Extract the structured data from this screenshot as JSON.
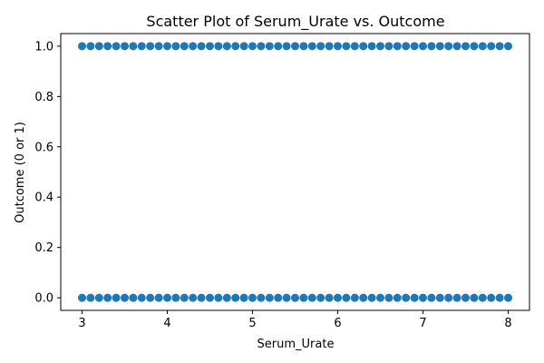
{
  "chart_data": {
    "type": "scatter",
    "title": "Scatter Plot of Serum_Urate vs. Outcome",
    "xlabel": "Serum_Urate",
    "ylabel": "Outcome (0 or 1)",
    "xlim": [
      2.75,
      8.25
    ],
    "ylim": [
      -0.05,
      1.05
    ],
    "xticks": [
      3,
      4,
      5,
      6,
      7,
      8
    ],
    "xtick_labels": [
      "3",
      "4",
      "5",
      "6",
      "7",
      "8"
    ],
    "yticks": [
      0.0,
      0.2,
      0.4,
      0.6,
      0.8,
      1.0
    ],
    "ytick_labels": [
      "0.0",
      "0.2",
      "0.4",
      "0.6",
      "0.8",
      "1.0"
    ],
    "grid": false,
    "marker_color": "#1f77b4",
    "series": [
      {
        "points": [
          {
            "x": 3.0,
            "y": 0
          },
          {
            "x": 3.1,
            "y": 0
          },
          {
            "x": 3.2,
            "y": 0
          },
          {
            "x": 3.3,
            "y": 0
          },
          {
            "x": 3.4,
            "y": 0
          },
          {
            "x": 3.5,
            "y": 0
          },
          {
            "x": 3.6,
            "y": 0
          },
          {
            "x": 3.7,
            "y": 0
          },
          {
            "x": 3.8,
            "y": 0
          },
          {
            "x": 3.9,
            "y": 0
          },
          {
            "x": 4.0,
            "y": 0
          },
          {
            "x": 4.1,
            "y": 0
          },
          {
            "x": 4.2,
            "y": 0
          },
          {
            "x": 4.3,
            "y": 0
          },
          {
            "x": 4.4,
            "y": 0
          },
          {
            "x": 4.5,
            "y": 0
          },
          {
            "x": 4.6,
            "y": 0
          },
          {
            "x": 4.7,
            "y": 0
          },
          {
            "x": 4.8,
            "y": 0
          },
          {
            "x": 4.9,
            "y": 0
          },
          {
            "x": 5.0,
            "y": 0
          },
          {
            "x": 5.1,
            "y": 0
          },
          {
            "x": 5.2,
            "y": 0
          },
          {
            "x": 5.3,
            "y": 0
          },
          {
            "x": 5.4,
            "y": 0
          },
          {
            "x": 5.5,
            "y": 0
          },
          {
            "x": 5.6,
            "y": 0
          },
          {
            "x": 5.7,
            "y": 0
          },
          {
            "x": 5.8,
            "y": 0
          },
          {
            "x": 5.9,
            "y": 0
          },
          {
            "x": 6.0,
            "y": 0
          },
          {
            "x": 6.1,
            "y": 0
          },
          {
            "x": 6.2,
            "y": 0
          },
          {
            "x": 6.3,
            "y": 0
          },
          {
            "x": 6.4,
            "y": 0
          },
          {
            "x": 6.5,
            "y": 0
          },
          {
            "x": 6.6,
            "y": 0
          },
          {
            "x": 6.7,
            "y": 0
          },
          {
            "x": 6.8,
            "y": 0
          },
          {
            "x": 6.9,
            "y": 0
          },
          {
            "x": 7.0,
            "y": 0
          },
          {
            "x": 7.1,
            "y": 0
          },
          {
            "x": 7.2,
            "y": 0
          },
          {
            "x": 7.3,
            "y": 0
          },
          {
            "x": 7.4,
            "y": 0
          },
          {
            "x": 7.5,
            "y": 0
          },
          {
            "x": 7.6,
            "y": 0
          },
          {
            "x": 7.7,
            "y": 0
          },
          {
            "x": 7.8,
            "y": 0
          },
          {
            "x": 7.9,
            "y": 0
          },
          {
            "x": 8.0,
            "y": 0
          },
          {
            "x": 3.0,
            "y": 1
          },
          {
            "x": 3.1,
            "y": 1
          },
          {
            "x": 3.2,
            "y": 1
          },
          {
            "x": 3.3,
            "y": 1
          },
          {
            "x": 3.4,
            "y": 1
          },
          {
            "x": 3.5,
            "y": 1
          },
          {
            "x": 3.6,
            "y": 1
          },
          {
            "x": 3.7,
            "y": 1
          },
          {
            "x": 3.8,
            "y": 1
          },
          {
            "x": 3.9,
            "y": 1
          },
          {
            "x": 4.0,
            "y": 1
          },
          {
            "x": 4.1,
            "y": 1
          },
          {
            "x": 4.2,
            "y": 1
          },
          {
            "x": 4.3,
            "y": 1
          },
          {
            "x": 4.4,
            "y": 1
          },
          {
            "x": 4.5,
            "y": 1
          },
          {
            "x": 4.6,
            "y": 1
          },
          {
            "x": 4.7,
            "y": 1
          },
          {
            "x": 4.8,
            "y": 1
          },
          {
            "x": 4.9,
            "y": 1
          },
          {
            "x": 5.0,
            "y": 1
          },
          {
            "x": 5.1,
            "y": 1
          },
          {
            "x": 5.2,
            "y": 1
          },
          {
            "x": 5.3,
            "y": 1
          },
          {
            "x": 5.4,
            "y": 1
          },
          {
            "x": 5.5,
            "y": 1
          },
          {
            "x": 5.6,
            "y": 1
          },
          {
            "x": 5.7,
            "y": 1
          },
          {
            "x": 5.8,
            "y": 1
          },
          {
            "x": 5.9,
            "y": 1
          },
          {
            "x": 6.0,
            "y": 1
          },
          {
            "x": 6.1,
            "y": 1
          },
          {
            "x": 6.2,
            "y": 1
          },
          {
            "x": 6.3,
            "y": 1
          },
          {
            "x": 6.4,
            "y": 1
          },
          {
            "x": 6.5,
            "y": 1
          },
          {
            "x": 6.6,
            "y": 1
          },
          {
            "x": 6.7,
            "y": 1
          },
          {
            "x": 6.8,
            "y": 1
          },
          {
            "x": 6.9,
            "y": 1
          },
          {
            "x": 7.0,
            "y": 1
          },
          {
            "x": 7.1,
            "y": 1
          },
          {
            "x": 7.2,
            "y": 1
          },
          {
            "x": 7.3,
            "y": 1
          },
          {
            "x": 7.4,
            "y": 1
          },
          {
            "x": 7.5,
            "y": 1
          },
          {
            "x": 7.6,
            "y": 1
          },
          {
            "x": 7.7,
            "y": 1
          },
          {
            "x": 7.8,
            "y": 1
          },
          {
            "x": 7.9,
            "y": 1
          },
          {
            "x": 8.0,
            "y": 1
          }
        ]
      }
    ]
  }
}
